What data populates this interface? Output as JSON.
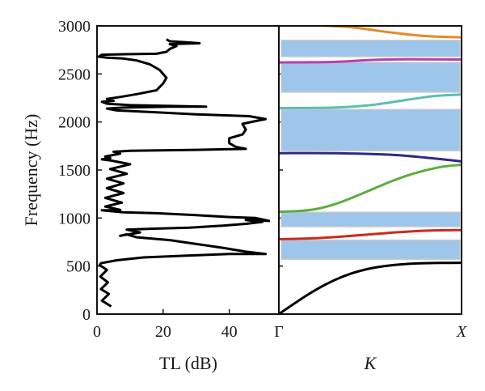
{
  "chart_data": [
    {
      "type": "line",
      "xlabel": "TL (dB)",
      "ylabel": "Frequency (Hz)",
      "xlim": [
        0,
        55
      ],
      "ylim": [
        0,
        3000
      ],
      "x_ticks": [
        "0",
        "20",
        "40"
      ],
      "x_tick_values": [
        0,
        20,
        40
      ],
      "y_ticks": [
        "0",
        "500",
        "1000",
        "1500",
        "2000",
        "2500",
        "3000"
      ],
      "y_tick_values": [
        0,
        500,
        1000,
        1500,
        2000,
        2500,
        3000
      ],
      "grid": false,
      "series": [
        {
          "color": "#000000",
          "points": [
            [
              4.3,
              80
            ],
            [
              1.5,
              140
            ],
            [
              3.6,
              210
            ],
            [
              1.2,
              260
            ],
            [
              3.3,
              330
            ],
            [
              1.0,
              390
            ],
            [
              3.0,
              460
            ],
            [
              0.8,
              510
            ],
            [
              1.2,
              530
            ],
            [
              6,
              560
            ],
            [
              14,
              590
            ],
            [
              28,
              610
            ],
            [
              40,
              625
            ],
            [
              51,
              625
            ],
            [
              45,
              650
            ],
            [
              38,
              690
            ],
            [
              30,
              730
            ],
            [
              22,
              770
            ],
            [
              12,
              800
            ],
            [
              9,
              830
            ],
            [
              7,
              815
            ],
            [
              13,
              850
            ],
            [
              9,
              880
            ],
            [
              18,
              890
            ],
            [
              28,
              900
            ],
            [
              38,
              920
            ],
            [
              45,
              940
            ],
            [
              50,
              960
            ],
            [
              45,
              980
            ],
            [
              52,
              970
            ],
            [
              48,
              1000
            ],
            [
              40,
              1010
            ],
            [
              30,
              1030
            ],
            [
              18,
              1050
            ],
            [
              8,
              1060
            ],
            [
              1.5,
              1080
            ],
            [
              7,
              1085
            ],
            [
              2.5,
              1120
            ],
            [
              7.5,
              1160
            ],
            [
              2.5,
              1210
            ],
            [
              8,
              1260
            ],
            [
              3,
              1310
            ],
            [
              8,
              1360
            ],
            [
              3,
              1410
            ],
            [
              9,
              1460
            ],
            [
              4,
              1510
            ],
            [
              10,
              1560
            ],
            [
              4,
              1600
            ],
            [
              1.5,
              1610
            ],
            [
              4,
              1625
            ],
            [
              2.5,
              1640
            ],
            [
              7,
              1670
            ],
            [
              5,
              1690
            ],
            [
              10,
              1700
            ],
            [
              30,
              1710
            ],
            [
              45,
              1720
            ],
            [
              42,
              1740
            ],
            [
              40,
              1780
            ],
            [
              40,
              1830
            ],
            [
              44,
              1870
            ],
            [
              45,
              1920
            ],
            [
              44,
              1980
            ],
            [
              48,
              2010
            ],
            [
              51,
              2030
            ],
            [
              46,
              2060
            ],
            [
              30,
              2080
            ],
            [
              18,
              2100
            ],
            [
              6,
              2120
            ],
            [
              3,
              2140
            ],
            [
              8,
              2150
            ],
            [
              22,
              2160
            ],
            [
              33,
              2160
            ],
            [
              10,
              2175
            ],
            [
              3,
              2190
            ],
            [
              1.5,
              2210
            ],
            [
              5,
              2220
            ],
            [
              3,
              2240
            ],
            [
              7,
              2260
            ],
            [
              12,
              2290
            ],
            [
              18,
              2330
            ],
            [
              20,
              2400
            ],
            [
              21,
              2460
            ],
            [
              19,
              2540
            ],
            [
              16,
              2600
            ],
            [
              12,
              2640
            ],
            [
              8,
              2660
            ],
            [
              3,
              2670
            ],
            [
              0.5,
              2680
            ],
            [
              1.5,
              2700
            ],
            [
              8,
              2705
            ],
            [
              18,
              2710
            ],
            [
              21,
              2730
            ],
            [
              22,
              2760
            ],
            [
              24,
              2790
            ],
            [
              22,
              2810
            ],
            [
              31,
              2820
            ],
            [
              27,
              2830
            ],
            [
              22,
              2840
            ],
            [
              21,
              2860
            ]
          ]
        }
      ]
    },
    {
      "type": "line",
      "xlabel": "K",
      "ylim": [
        0,
        3000
      ],
      "x_ticks": [
        "Γ",
        "X"
      ],
      "x_tick_values": [
        0,
        1
      ],
      "xlim": [
        0,
        1
      ],
      "grid": false,
      "band_gaps": [
        {
          "from": 570,
          "to": 770,
          "color": "#9ec6ea"
        },
        {
          "from": 910,
          "to": 1060,
          "color": "#9ec6ea"
        },
        {
          "from": 1700,
          "to": 2130,
          "color": "#9ec6ea"
        },
        {
          "from": 2310,
          "to": 2620,
          "color": "#9ec6ea"
        },
        {
          "from": 2680,
          "to": 2850,
          "color": "#9ec6ea"
        }
      ],
      "series": [
        {
          "color": "#000000",
          "points": [
            [
              0,
              0
            ],
            [
              0.1,
              130
            ],
            [
              0.2,
              250
            ],
            [
              0.3,
              350
            ],
            [
              0.4,
              425
            ],
            [
              0.5,
              475
            ],
            [
              0.6,
              505
            ],
            [
              0.7,
              522
            ],
            [
              0.8,
              530
            ],
            [
              0.9,
              533
            ],
            [
              1.0,
              534
            ]
          ]
        },
        {
          "color": "#cc2a1f",
          "points": [
            [
              0,
              780
            ],
            [
              0.2,
              790
            ],
            [
              0.4,
              815
            ],
            [
              0.6,
              845
            ],
            [
              0.8,
              868
            ],
            [
              1.0,
              875
            ]
          ]
        },
        {
          "color": "#5aad3c",
          "points": [
            [
              0,
              1065
            ],
            [
              0.1,
              1072
            ],
            [
              0.2,
              1092
            ],
            [
              0.3,
              1140
            ],
            [
              0.4,
              1210
            ],
            [
              0.5,
              1290
            ],
            [
              0.6,
              1370
            ],
            [
              0.7,
              1440
            ],
            [
              0.8,
              1495
            ],
            [
              0.9,
              1535
            ],
            [
              1.0,
              1555
            ]
          ]
        },
        {
          "color": "#2b2a8a",
          "points": [
            [
              0,
              1675
            ],
            [
              0.3,
              1675
            ],
            [
              0.6,
              1660
            ],
            [
              0.8,
              1630
            ],
            [
              1.0,
              1590
            ]
          ]
        },
        {
          "color": "#5bbfb1",
          "points": [
            [
              0,
              2145
            ],
            [
              0.3,
              2150
            ],
            [
              0.5,
              2175
            ],
            [
              0.7,
              2230
            ],
            [
              0.85,
              2270
            ],
            [
              1.0,
              2285
            ]
          ]
        },
        {
          "color": "#b53fae",
          "points": [
            [
              0,
              2620
            ],
            [
              0.3,
              2625
            ],
            [
              0.5,
              2645
            ],
            [
              0.7,
              2652
            ],
            [
              1.0,
              2650
            ]
          ]
        },
        {
          "color": "#e38a2a",
          "points": [
            [
              0,
              3010
            ],
            [
              0.2,
              3005
            ],
            [
              0.4,
              2985
            ],
            [
              0.6,
              2935
            ],
            [
              0.8,
              2895
            ],
            [
              1.0,
              2880
            ]
          ]
        }
      ]
    }
  ]
}
